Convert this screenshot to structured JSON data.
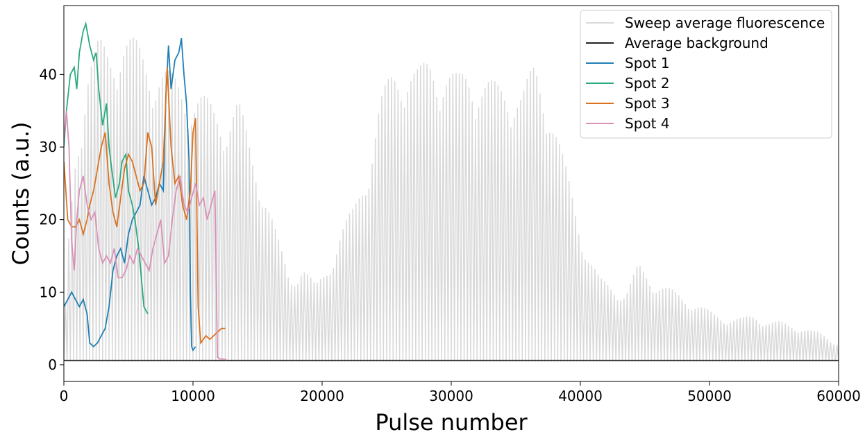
{
  "chart_data": {
    "type": "line",
    "title": "",
    "xlabel": "Pulse number",
    "ylabel": "Counts (a.u.)",
    "xlim": [
      0,
      60000
    ],
    "ylim": [
      -2.3,
      49.5
    ],
    "xticks": [
      0,
      10000,
      20000,
      30000,
      40000,
      50000,
      60000
    ],
    "yticks": [
      0,
      10,
      20,
      30,
      40
    ],
    "grid": false,
    "legend_position": "top-right",
    "sweep": {
      "name": "Sweep average fluorescence",
      "color": "#d9d9d9",
      "period": 250,
      "floor": 0.4,
      "envelope_points": [
        [
          0,
          3
        ],
        [
          300,
          16
        ],
        [
          900,
          30
        ],
        [
          1800,
          42
        ],
        [
          2700,
          45
        ],
        [
          3500,
          44
        ],
        [
          4500,
          47
        ],
        [
          5500,
          45
        ],
        [
          6500,
          43
        ],
        [
          7500,
          42
        ],
        [
          8500,
          40
        ],
        [
          9500,
          39
        ],
        [
          10500,
          38
        ],
        [
          11500,
          36
        ],
        [
          12500,
          35
        ],
        [
          13500,
          37
        ],
        [
          14500,
          30
        ],
        [
          15500,
          25
        ],
        [
          16500,
          18
        ],
        [
          17500,
          12
        ],
        [
          18500,
          14
        ],
        [
          19500,
          11
        ],
        [
          20500,
          14
        ],
        [
          21500,
          19
        ],
        [
          22500,
          22
        ],
        [
          23500,
          28
        ],
        [
          24500,
          37
        ],
        [
          25500,
          41
        ],
        [
          26500,
          43
        ],
        [
          27500,
          41
        ],
        [
          28500,
          43
        ],
        [
          29500,
          42
        ],
        [
          30500,
          40
        ],
        [
          31500,
          42
        ],
        [
          32500,
          40
        ],
        [
          33500,
          39
        ],
        [
          34500,
          40
        ],
        [
          35500,
          38
        ],
        [
          36500,
          42
        ],
        [
          37500,
          38
        ],
        [
          38500,
          30
        ],
        [
          39500,
          23
        ],
        [
          40500,
          16
        ],
        [
          41500,
          12
        ],
        [
          42500,
          11
        ],
        [
          43500,
          10
        ],
        [
          44500,
          14
        ],
        [
          45500,
          12
        ],
        [
          46500,
          11
        ],
        [
          47500,
          10
        ],
        [
          48500,
          9
        ],
        [
          49500,
          8
        ],
        [
          50500,
          7
        ],
        [
          51500,
          6.5
        ],
        [
          52500,
          6.5
        ],
        [
          53500,
          7
        ],
        [
          54500,
          6
        ],
        [
          55500,
          6
        ],
        [
          56500,
          5.5
        ],
        [
          57500,
          5
        ],
        [
          58500,
          4.5
        ],
        [
          59500,
          3.5
        ],
        [
          60000,
          3
        ]
      ]
    },
    "series": [
      {
        "name": "Average background",
        "color": "#222222",
        "x": [
          0,
          60000
        ],
        "y": [
          0.6,
          0.6
        ]
      },
      {
        "name": "Spot 1",
        "color": "#1f7fb4",
        "x": [
          0,
          300,
          600,
          900,
          1200,
          1500,
          1800,
          2000,
          2300,
          2600,
          2900,
          3200,
          3500,
          3800,
          4100,
          4400,
          4700,
          5000,
          5300,
          5600,
          5900,
          6200,
          6500,
          6800,
          7100,
          7400,
          7700,
          7900,
          8100,
          8300,
          8600,
          8900,
          9100,
          9300,
          9500,
          9700,
          9800,
          9900,
          10000,
          10200
        ],
        "y": [
          8,
          9,
          10,
          9,
          8,
          9,
          7,
          3,
          2.5,
          3,
          4,
          5,
          8,
          13,
          15,
          16,
          14,
          18,
          20,
          21,
          22,
          26,
          24,
          22,
          23,
          25,
          24,
          37,
          44,
          38,
          42,
          43,
          45,
          40,
          36,
          28,
          10,
          2.5,
          2,
          2.5
        ]
      },
      {
        "name": "Spot 2",
        "color": "#2aa97f",
        "x": [
          0,
          200,
          500,
          800,
          1000,
          1200,
          1500,
          1700,
          2000,
          2300,
          2500,
          2700,
          3000,
          3300,
          3500,
          3700,
          4000,
          4300,
          4500,
          4800,
          5000,
          5300,
          5500,
          5800,
          6000,
          6200,
          6500
        ],
        "y": [
          30,
          35,
          40,
          41,
          38,
          43,
          46,
          47,
          44,
          42,
          43,
          38,
          33,
          36,
          30,
          27,
          23,
          25,
          28,
          29,
          24,
          22,
          20,
          16,
          12,
          8,
          7
        ]
      },
      {
        "name": "Spot 3",
        "color": "#d97221",
        "x": [
          0,
          300,
          600,
          900,
          1200,
          1500,
          1800,
          2000,
          2300,
          2600,
          2900,
          3200,
          3500,
          3800,
          4100,
          4400,
          4700,
          5000,
          5300,
          5600,
          5900,
          6200,
          6500,
          6800,
          7100,
          7400,
          7700,
          8000,
          8300,
          8600,
          8900,
          9200,
          9500,
          9800,
          10000,
          10200,
          10400,
          10600,
          10800,
          11000,
          11300,
          11600,
          11900,
          12200,
          12500
        ],
        "y": [
          28,
          20,
          19,
          19,
          20,
          18,
          20,
          22,
          24,
          27,
          30,
          32,
          25,
          21,
          19,
          23,
          27,
          29,
          28,
          26,
          24,
          25,
          32,
          30,
          22,
          25,
          28,
          41,
          30,
          25,
          26,
          22,
          20,
          24,
          32,
          34,
          8,
          3,
          3.5,
          4,
          3.5,
          4,
          4.5,
          5,
          5
        ]
      },
      {
        "name": "Spot 4",
        "color": "#d991b8",
        "x": [
          0,
          200,
          400,
          600,
          800,
          1000,
          1200,
          1500,
          1800,
          2100,
          2400,
          2700,
          3000,
          3300,
          3600,
          3900,
          4200,
          4500,
          4800,
          5100,
          5400,
          5700,
          6000,
          6300,
          6600,
          6900,
          7200,
          7500,
          7800,
          8100,
          8400,
          8700,
          9000,
          9300,
          9600,
          9900,
          10200,
          10500,
          10800,
          11100,
          11400,
          11700,
          11900,
          12100,
          12400,
          12600
        ],
        "y": [
          31,
          35,
          30,
          17,
          13,
          20,
          24,
          26,
          22,
          20,
          21,
          16,
          14,
          15,
          14,
          16,
          12,
          12,
          13,
          15,
          14,
          16,
          15,
          14,
          13,
          16,
          18,
          20,
          14,
          15,
          20,
          24,
          26,
          22,
          21,
          23,
          25,
          22,
          23,
          20,
          22,
          24,
          1,
          0.8,
          0.8,
          0.7
        ]
      }
    ]
  }
}
